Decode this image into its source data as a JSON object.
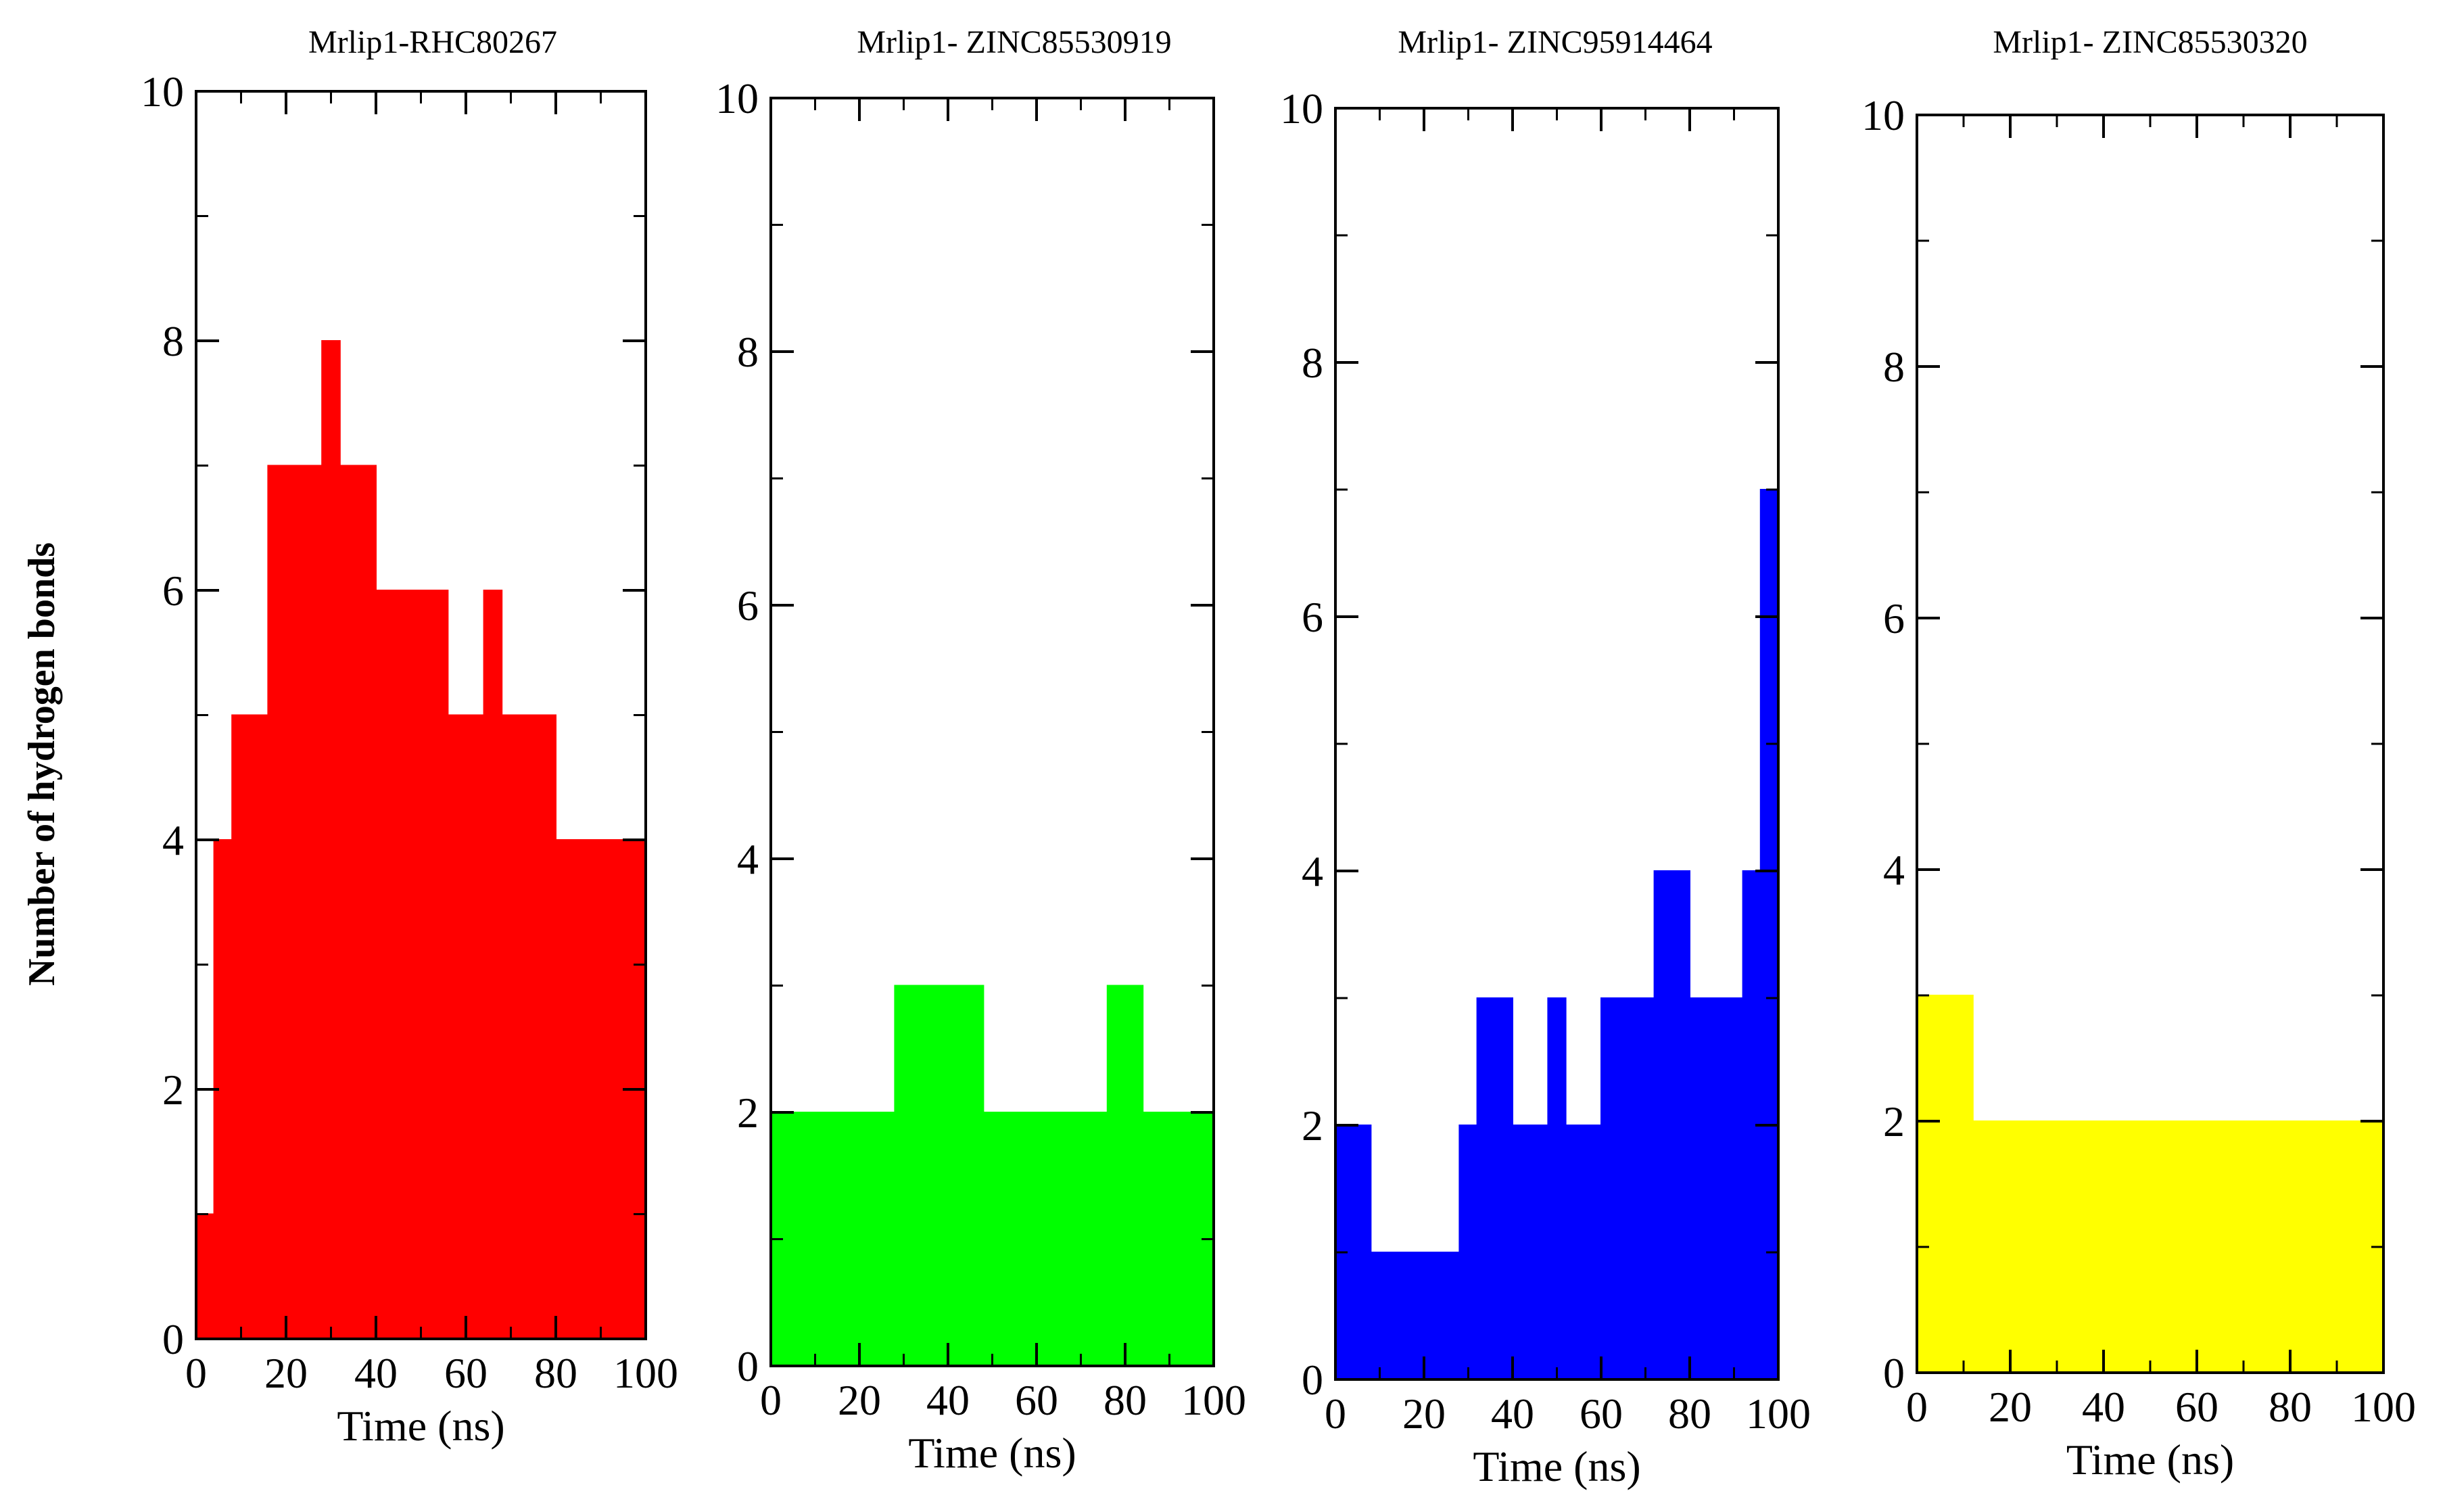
{
  "figure": {
    "ylabel": "Number of hydrogen bonds"
  },
  "chart_data": [
    {
      "type": "area",
      "title": "Mrlip1-RHC80267",
      "xlabel": "Time (ns)",
      "ylabel": "Number of hydrogen bonds",
      "xlim": [
        0,
        100
      ],
      "ylim": [
        0,
        10
      ],
      "x_ticks": [
        0,
        20,
        40,
        60,
        80,
        100
      ],
      "y_ticks": [
        0,
        2,
        4,
        6,
        8,
        10
      ],
      "color": "#ff0000",
      "series": [
        {
          "name": "Mrlip1-RHC80267",
          "x": [
            0,
            4,
            8,
            12,
            16,
            20,
            24,
            28,
            32,
            36,
            40,
            44,
            48,
            52,
            56,
            60,
            64,
            68,
            72,
            76,
            80,
            84,
            88,
            92,
            96,
            100
          ],
          "values": [
            1,
            4,
            5,
            5,
            7,
            7,
            7,
            8,
            7,
            7,
            6,
            6,
            6,
            6,
            5,
            5,
            6,
            5,
            5,
            5,
            4,
            4,
            4,
            4,
            4,
            4
          ]
        }
      ]
    },
    {
      "type": "area",
      "title": "Mrlip1-  ZINC85530919",
      "xlabel": "Time (ns)",
      "ylabel": "Number of hydrogen bonds",
      "xlim": [
        0,
        100
      ],
      "ylim": [
        0,
        10
      ],
      "x_ticks": [
        0,
        20,
        40,
        60,
        80,
        "100"
      ],
      "y_ticks": [
        0,
        2,
        4,
        6,
        8,
        10
      ],
      "color": "#00ff00",
      "series": [
        {
          "name": "Mrlip1-  ZINC85530919",
          "x": [
            0,
            4,
            8,
            12,
            16,
            20,
            24,
            28,
            32,
            36,
            40,
            44,
            48,
            52,
            56,
            60,
            64,
            68,
            72,
            76,
            80,
            84,
            88,
            92,
            96,
            100
          ],
          "values": [
            2,
            2,
            2,
            2,
            2,
            2,
            2,
            3,
            3,
            3,
            3,
            3,
            2,
            2,
            2,
            2,
            2,
            2,
            2,
            3,
            3,
            2,
            2,
            2,
            2,
            2
          ]
        }
      ]
    },
    {
      "type": "area",
      "title": "Mrlip1-  ZINC95914464",
      "xlabel": "Time (ns)",
      "ylabel": "Number of hydrogen bonds",
      "xlim": [
        0,
        100
      ],
      "ylim": [
        0,
        10
      ],
      "x_ticks": [
        0,
        20,
        40,
        60,
        80,
        100
      ],
      "y_ticks": [
        0,
        2,
        4,
        6,
        8,
        10
      ],
      "color": "#0000ff",
      "series": [
        {
          "name": "Mrlip1-  ZINC95914464",
          "x": [
            0,
            4,
            8,
            12,
            16,
            20,
            24,
            28,
            32,
            36,
            40,
            44,
            48,
            52,
            56,
            60,
            64,
            68,
            72,
            76,
            80,
            84,
            88,
            92,
            96,
            100
          ],
          "values": [
            2,
            2,
            1,
            1,
            1,
            1,
            1,
            2,
            3,
            3,
            2,
            2,
            3,
            2,
            2,
            3,
            3,
            3,
            4,
            4,
            3,
            3,
            3,
            4,
            7,
            7
          ]
        }
      ]
    },
    {
      "type": "area",
      "title": "Mrlip1-  ZINC85530320",
      "xlabel": "Time (ns)",
      "ylabel": "Number of hydrogen bonds",
      "xlim": [
        0,
        100
      ],
      "ylim": [
        0,
        10
      ],
      "x_ticks": [
        0,
        20,
        40,
        60,
        80,
        100
      ],
      "y_ticks": [
        0,
        2,
        4,
        6,
        8,
        10
      ],
      "color": "#ffff00",
      "series": [
        {
          "name": "Mrlip1-  ZINC85530320",
          "x": [
            0,
            4,
            8,
            12,
            16,
            20,
            24,
            28,
            32,
            36,
            40,
            44,
            48,
            52,
            56,
            60,
            64,
            68,
            72,
            76,
            80,
            84,
            88,
            92,
            96,
            100
          ],
          "values": [
            3,
            3,
            3,
            2,
            2,
            2,
            2,
            2,
            2,
            2,
            2,
            2,
            2,
            2,
            2,
            2,
            2,
            2,
            2,
            2,
            2,
            2,
            2,
            2,
            2,
            2
          ]
        }
      ]
    }
  ]
}
